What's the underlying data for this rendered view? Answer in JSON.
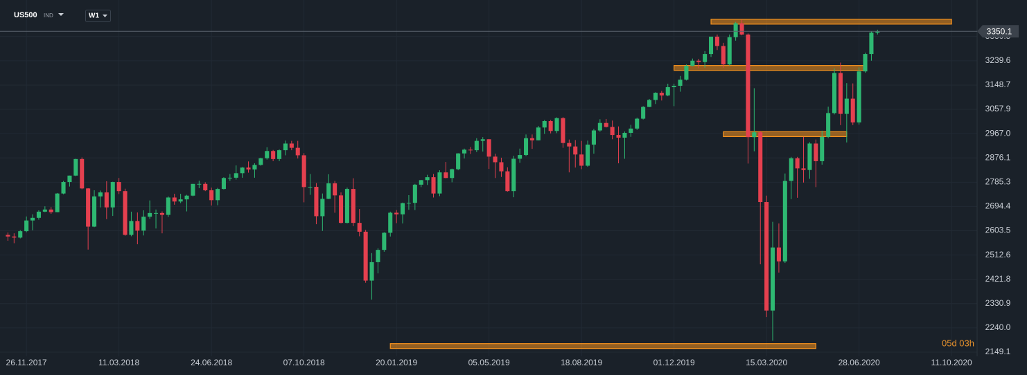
{
  "toolbar": {
    "symbol": "US500",
    "symbol_type": "IND",
    "timeframe": "W1",
    "countdown": "05d 03h"
  },
  "chart_data": {
    "type": "candlestick",
    "up_color": "#2eb872",
    "down_color": "#e5404f",
    "level_color": "#f7931e",
    "grid": true,
    "last_price": 3350.1,
    "xlim": [
      "27.10.2017",
      "09.11.2020"
    ],
    "ylim": [
      2133.6,
      3467.2
    ],
    "yticks": [
      2149.1,
      {
        "value": 2240,
        "label": "2240.0"
      },
      2330.9,
      2421.8,
      2512.6,
      2603.5,
      2694.4,
      2785.3,
      2876.1,
      {
        "value": 2967,
        "label": "2967.0"
      },
      3057.9,
      3148.7,
      3239.6,
      3330.5
    ],
    "xticks": [
      "26.11.2017",
      "11.03.2018",
      "24.06.2018",
      "07.10.2018",
      "20.01.2019",
      "05.05.2019",
      "18.08.2019",
      "01.12.2019",
      "15.03.2020",
      "28.06.2020",
      "11.10.2020"
    ],
    "levels": [
      {
        "value": 3386,
        "from": "12.01.2020",
        "to": "11.10.2020"
      },
      {
        "value": 3213,
        "from": "01.12.2019",
        "to": "05.07.2020"
      },
      {
        "value": 2965,
        "from": "26.01.2020",
        "to": "14.06.2020"
      },
      {
        "value": 2172,
        "from": "13.01.2019",
        "to": "10.05.2020"
      }
    ],
    "x": [
      "05.11.2017",
      "12.11.2017",
      "19.11.2017",
      "26.11.2017",
      "03.12.2017",
      "10.12.2017",
      "17.12.2017",
      "24.12.2017",
      "31.12.2017",
      "07.01.2018",
      "14.01.2018",
      "21.01.2018",
      "28.01.2018",
      "04.02.2018",
      "11.02.2018",
      "18.02.2018",
      "25.02.2018",
      "04.03.2018",
      "11.03.2018",
      "18.03.2018",
      "25.03.2018",
      "01.04.2018",
      "08.04.2018",
      "15.04.2018",
      "22.04.2018",
      "29.04.2018",
      "06.05.2018",
      "13.05.2018",
      "20.05.2018",
      "27.05.2018",
      "03.06.2018",
      "10.06.2018",
      "17.06.2018",
      "24.06.2018",
      "01.07.2018",
      "08.07.2018",
      "15.07.2018",
      "22.07.2018",
      "29.07.2018",
      "05.08.2018",
      "12.08.2018",
      "19.08.2018",
      "26.08.2018",
      "02.09.2018",
      "09.09.2018",
      "16.09.2018",
      "23.09.2018",
      "30.09.2018",
      "07.10.2018",
      "14.10.2018",
      "21.10.2018",
      "28.10.2018",
      "04.11.2018",
      "11.11.2018",
      "18.11.2018",
      "25.11.2018",
      "02.12.2018",
      "09.12.2018",
      "16.12.2018",
      "23.12.2018",
      "30.12.2018",
      "06.01.2019",
      "13.01.2019",
      "20.01.2019",
      "27.01.2019",
      "03.02.2019",
      "10.02.2019",
      "17.02.2019",
      "24.02.2019",
      "03.03.2019",
      "10.03.2019",
      "17.03.2019",
      "24.03.2019",
      "31.03.2019",
      "07.04.2019",
      "14.04.2019",
      "21.04.2019",
      "28.04.2019",
      "05.05.2019",
      "12.05.2019",
      "19.05.2019",
      "26.05.2019",
      "02.06.2019",
      "09.06.2019",
      "16.06.2019",
      "23.06.2019",
      "30.06.2019",
      "07.07.2019",
      "14.07.2019",
      "21.07.2019",
      "28.07.2019",
      "04.08.2019",
      "11.08.2019",
      "18.08.2019",
      "25.08.2019",
      "01.09.2019",
      "08.09.2019",
      "15.09.2019",
      "22.09.2019",
      "29.09.2019",
      "06.10.2019",
      "13.10.2019",
      "20.10.2019",
      "27.10.2019",
      "03.11.2019",
      "10.11.2019",
      "17.11.2019",
      "24.11.2019",
      "01.12.2019",
      "08.12.2019",
      "15.12.2019",
      "22.12.2019",
      "29.12.2019",
      "05.01.2020",
      "12.01.2020",
      "19.01.2020",
      "26.01.2020",
      "02.02.2020",
      "09.02.2020",
      "16.02.2020",
      "23.02.2020",
      "01.03.2020",
      "08.03.2020",
      "15.03.2020",
      "22.03.2020",
      "29.03.2020",
      "05.04.2020",
      "12.04.2020",
      "19.04.2020",
      "26.04.2020",
      "03.05.2020",
      "10.05.2020",
      "17.05.2020",
      "24.05.2020",
      "31.05.2020",
      "07.06.2020",
      "14.06.2020",
      "21.06.2020",
      "28.06.2020",
      "05.07.2020",
      "12.07.2020",
      "19.07.2020"
    ],
    "open": [
      2588,
      2582,
      2578,
      2602,
      2642,
      2652,
      2675,
      2683,
      2673,
      2743,
      2786,
      2810,
      2872,
      2762,
      2619,
      2732,
      2747,
      2691,
      2786,
      2752,
      2588,
      2640,
      2604,
      2656,
      2670,
      2670,
      2663,
      2728,
      2713,
      2721,
      2735,
      2779,
      2779,
      2755,
      2718,
      2760,
      2801,
      2802,
      2819,
      2840,
      2833,
      2850,
      2875,
      2902,
      2872,
      2905,
      2930,
      2914,
      2886,
      2767,
      2768,
      2658,
      2723,
      2781,
      2736,
      2633,
      2760,
      2633,
      2600,
      2417,
      2486,
      2532,
      2596,
      2671,
      2665,
      2707,
      2708,
      2776,
      2793,
      2804,
      2743,
      2822,
      2801,
      2834,
      2893,
      2907,
      2905,
      2940,
      2946,
      2881,
      2860,
      2826,
      2752,
      2873,
      2887,
      2950,
      2942,
      2990,
      3014,
      2977,
      3025,
      2932,
      2919,
      2889,
      2847,
      2926,
      2979,
      3007,
      2992,
      2962,
      2952,
      2970,
      2986,
      3023,
      3067,
      3093,
      3120,
      3110,
      3141,
      3146,
      3169,
      3221,
      3240,
      3235,
      3265,
      3330,
      3295,
      3226,
      3328,
      3380,
      3338,
      2954,
      2972,
      2711,
      2305,
      2541,
      2489,
      2790,
      2875,
      2837,
      2831,
      2930,
      2864,
      2955,
      3044,
      3194,
      3041,
      3098,
      3009,
      3200,
      3265,
      3345
    ],
    "high": [
      2597,
      2594,
      2606,
      2657,
      2665,
      2680,
      2695,
      2692,
      2745,
      2790,
      2810,
      2873,
      2878,
      2763,
      2755,
      2754,
      2789,
      2787,
      2801,
      2761,
      2675,
      2672,
      2680,
      2717,
      2683,
      2676,
      2732,
      2742,
      2742,
      2738,
      2779,
      2791,
      2785,
      2765,
      2764,
      2804,
      2816,
      2848,
      2842,
      2863,
      2856,
      2877,
      2916,
      2906,
      2908,
      2941,
      2940,
      2940,
      2894,
      2816,
      2782,
      2743,
      2815,
      2790,
      2747,
      2765,
      2800,
      2685,
      2607,
      2520,
      2538,
      2598,
      2675,
      2681,
      2709,
      2737,
      2779,
      2794,
      2813,
      2816,
      2830,
      2861,
      2836,
      2894,
      2911,
      2917,
      2950,
      2954,
      2947,
      2892,
      2877,
      2841,
      2884,
      2911,
      2964,
      2964,
      2996,
      3018,
      3018,
      3028,
      3029,
      2945,
      2943,
      2940,
      2941,
      2985,
      3021,
      3022,
      3016,
      2994,
      2975,
      3000,
      3027,
      3070,
      3097,
      3122,
      3127,
      3154,
      3154,
      3183,
      3226,
      3248,
      3247,
      3276,
      3330,
      3338,
      3307,
      3338,
      3385,
      3394,
      3342,
      3137,
      2977,
      2735,
      2637,
      2631,
      2818,
      2880,
      2880,
      2955,
      2935,
      2945,
      2978,
      3068,
      3211,
      3233,
      3156,
      3155,
      3215,
      3270,
      3350,
      3356
    ],
    "low": [
      2566,
      2557,
      2575,
      2598,
      2605,
      2645,
      2673,
      2667,
      2673,
      2740,
      2769,
      2808,
      2759,
      2533,
      2617,
      2691,
      2647,
      2659,
      2741,
      2585,
      2583,
      2553,
      2586,
      2648,
      2612,
      2594,
      2655,
      2701,
      2707,
      2676,
      2732,
      2763,
      2752,
      2698,
      2699,
      2758,
      2790,
      2795,
      2802,
      2821,
      2802,
      2847,
      2870,
      2864,
      2864,
      2886,
      2905,
      2874,
      2710,
      2738,
      2628,
      2603,
      2722,
      2671,
      2631,
      2631,
      2621,
      2583,
      2409,
      2346,
      2444,
      2525,
      2582,
      2632,
      2631,
      2682,
      2681,
      2767,
      2775,
      2728,
      2733,
      2800,
      2785,
      2830,
      2874,
      2891,
      2898,
      2900,
      2835,
      2801,
      2805,
      2750,
      2729,
      2858,
      2883,
      2910,
      2942,
      2966,
      2968,
      2969,
      2914,
      2822,
      2840,
      2834,
      2843,
      2892,
      2974,
      2990,
      2946,
      2856,
      2873,
      2955,
      2981,
      3020,
      3066,
      3078,
      3091,
      3107,
      3070,
      3124,
      3166,
      3219,
      3212,
      3214,
      3254,
      3280,
      3214,
      3222,
      3315,
      3335,
      2855,
      2901,
      2478,
      2281,
      2192,
      2447,
      2483,
      2722,
      2727,
      2784,
      2798,
      2767,
      2851,
      2950,
      3039,
      2999,
      2934,
      2999,
      3001,
      3195,
      3240,
      3338
    ],
    "close": [
      2582,
      2578,
      2602,
      2642,
      2652,
      2675,
      2683,
      2673,
      2743,
      2786,
      2810,
      2872,
      2762,
      2619,
      2732,
      2747,
      2691,
      2786,
      2752,
      2588,
      2640,
      2604,
      2656,
      2670,
      2670,
      2663,
      2728,
      2713,
      2721,
      2735,
      2779,
      2779,
      2755,
      2718,
      2760,
      2801,
      2802,
      2819,
      2840,
      2833,
      2850,
      2875,
      2902,
      2872,
      2905,
      2930,
      2914,
      2886,
      2767,
      2768,
      2658,
      2723,
      2781,
      2736,
      2633,
      2760,
      2633,
      2600,
      2417,
      2486,
      2532,
      2596,
      2671,
      2665,
      2707,
      2708,
      2776,
      2793,
      2804,
      2743,
      2822,
      2801,
      2834,
      2893,
      2907,
      2905,
      2940,
      2946,
      2881,
      2860,
      2826,
      2752,
      2873,
      2887,
      2950,
      2942,
      2990,
      3014,
      2977,
      3025,
      2932,
      2919,
      2889,
      2847,
      2926,
      2979,
      3007,
      2992,
      2962,
      2952,
      2970,
      2986,
      3023,
      3067,
      3093,
      3120,
      3110,
      3141,
      3146,
      3169,
      3221,
      3240,
      3235,
      3265,
      3330,
      3295,
      3226,
      3328,
      3380,
      3338,
      2954,
      2972,
      2711,
      2305,
      2541,
      2489,
      2790,
      2875,
      2837,
      2831,
      2930,
      2864,
      2955,
      3044,
      3194,
      3041,
      3098,
      3009,
      3200,
      3265,
      3345,
      3350.1
    ]
  }
}
